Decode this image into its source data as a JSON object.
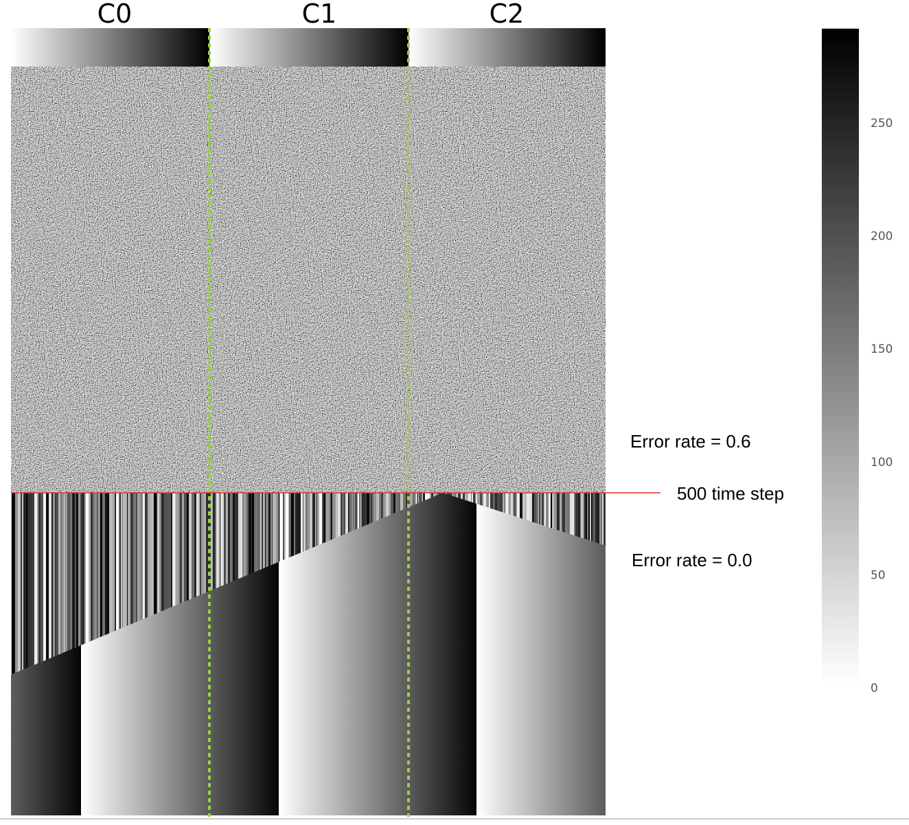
{
  "column_labels": [
    "C0",
    "C1",
    "C2"
  ],
  "annotations": {
    "error_before": "Error rate =  0.6",
    "time_step": "500 time step",
    "error_after": "Error rate = 0.0"
  },
  "colorbar": {
    "lim": [
      0,
      292
    ],
    "ticks": [
      0,
      50,
      100,
      150,
      200,
      250
    ]
  }
}
